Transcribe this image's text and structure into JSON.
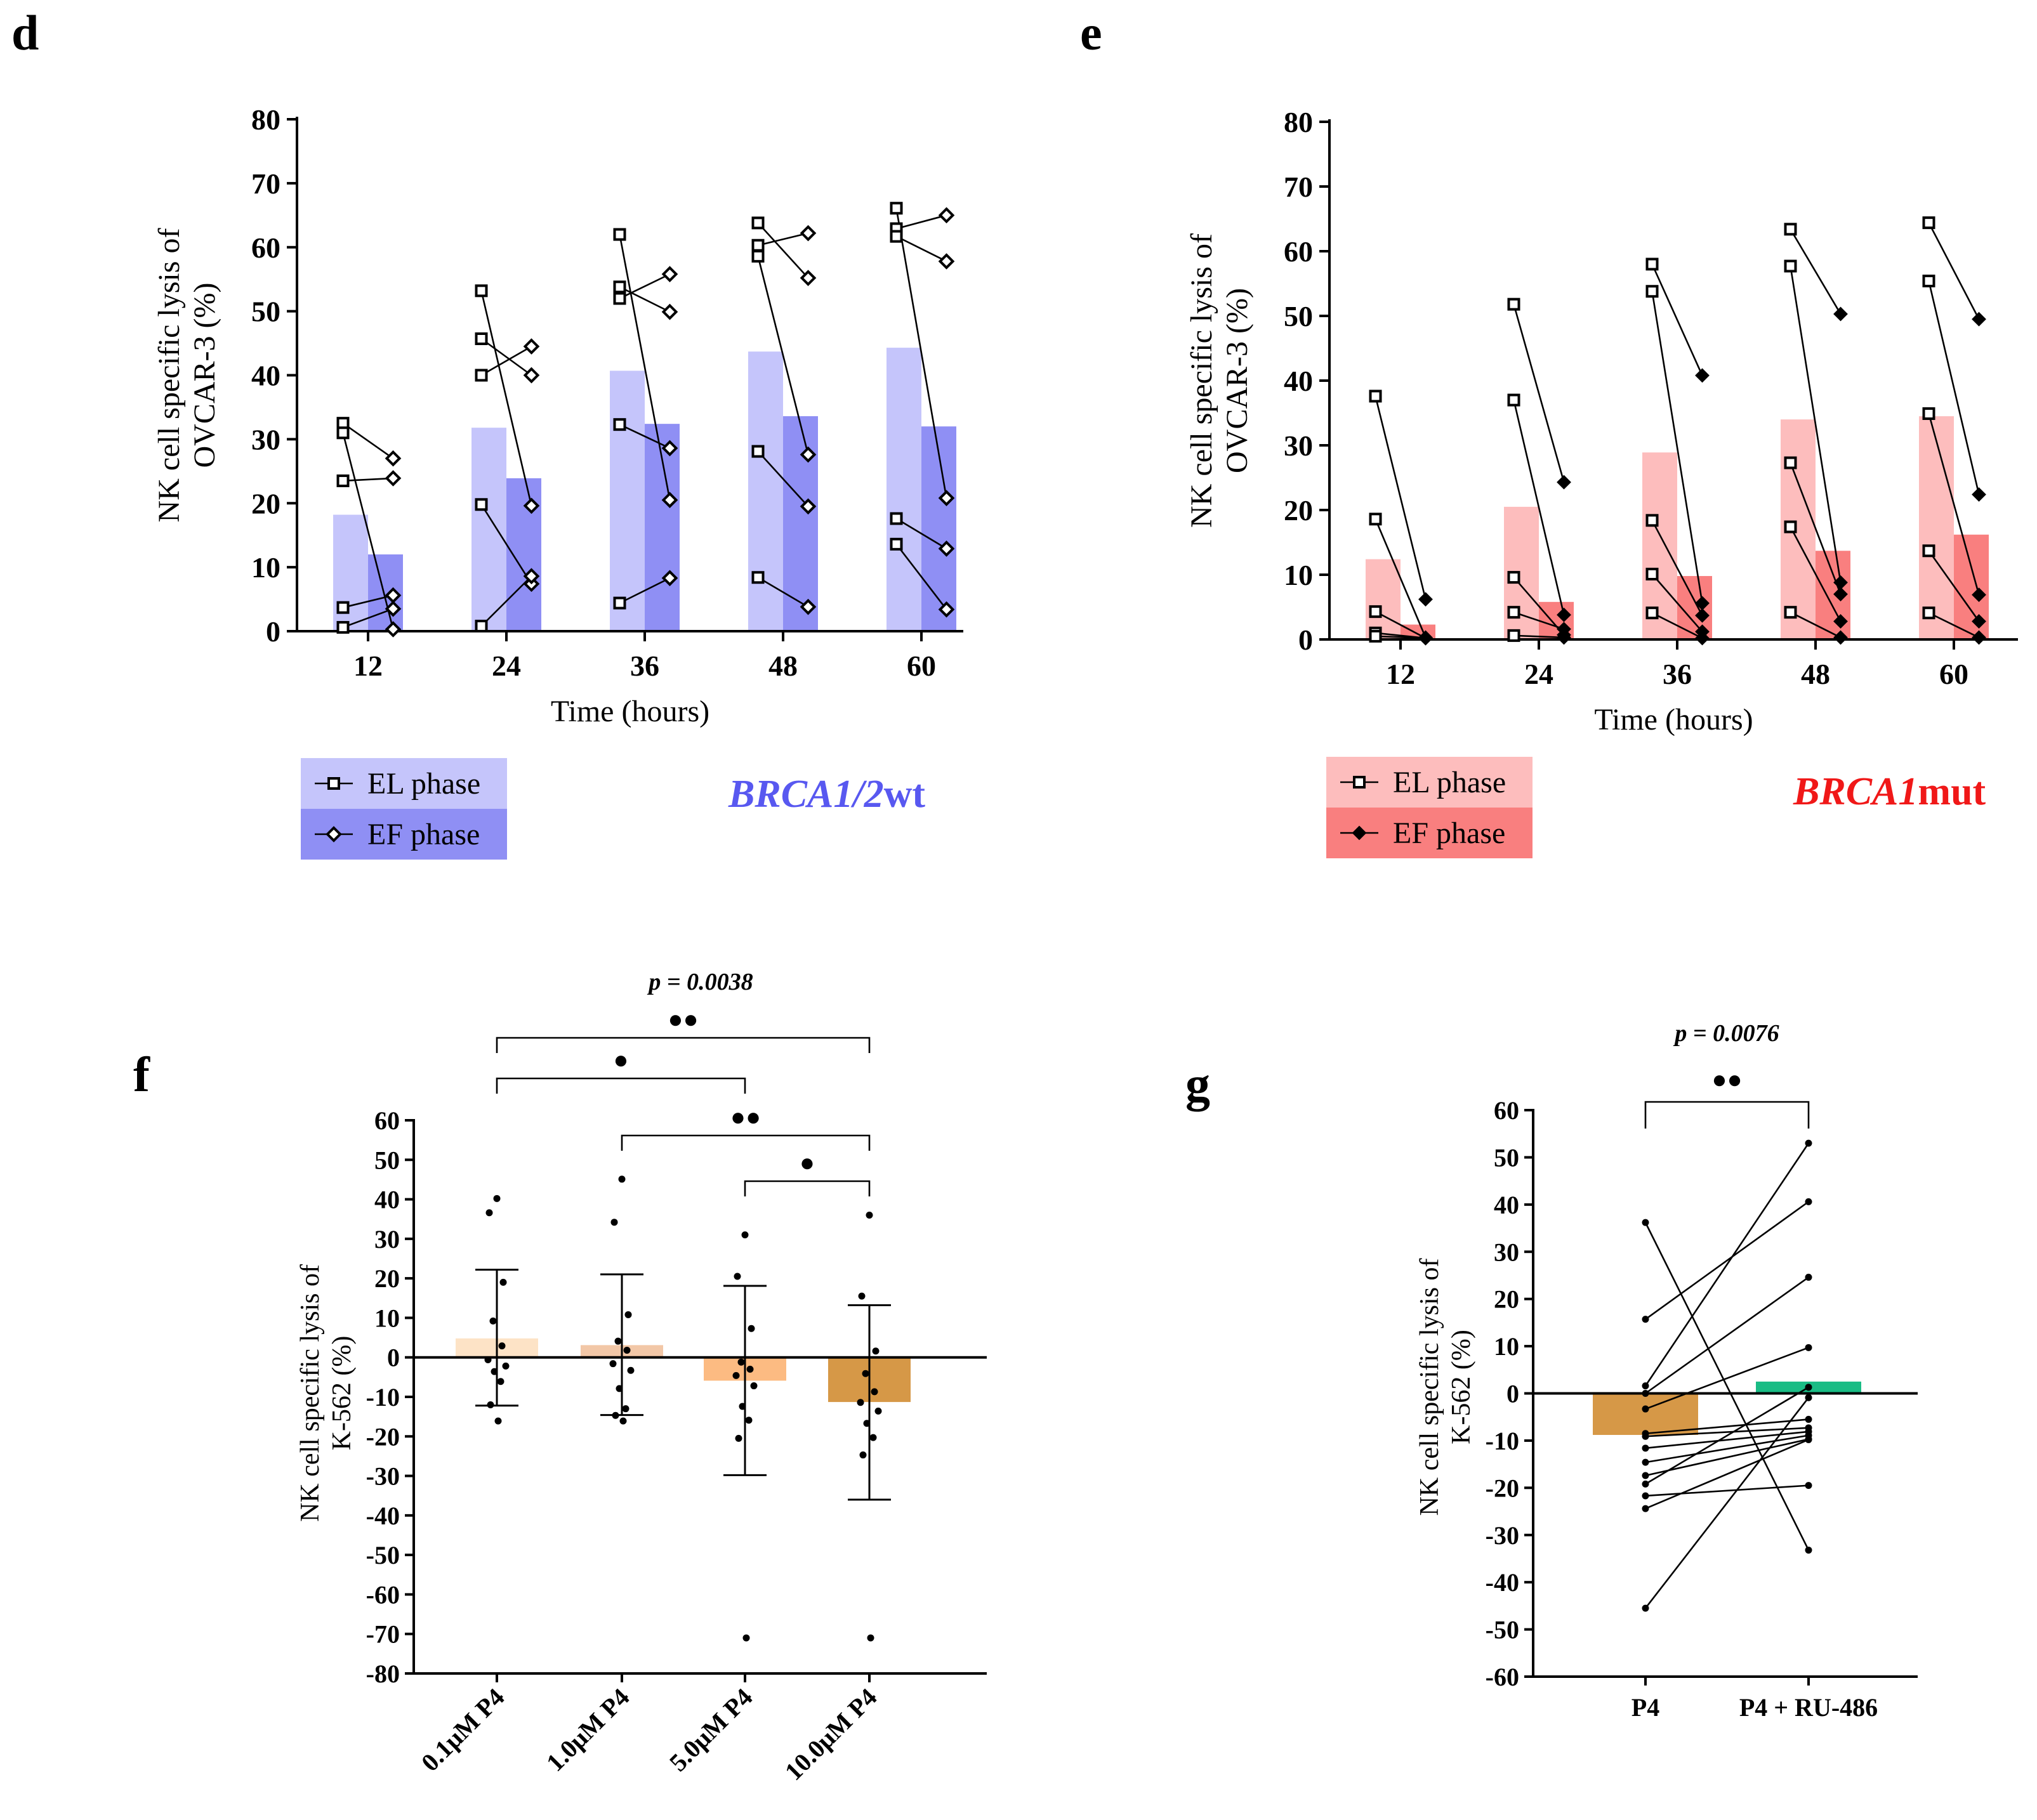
{
  "figure": {
    "panel_labels": [
      "d",
      "e",
      "f",
      "g"
    ]
  },
  "colors": {
    "d_el": "#c5c5fb",
    "d_ef": "#8f8ff4",
    "e_el": "#fdbdbd",
    "e_ef": "#f97f7f",
    "f_bar_0": "#fde3c6",
    "f_bar_1": "#f2c7a7",
    "f_bar_2": "#fcbb82",
    "f_bar_3": "#d69847",
    "g_bar_p4": "#d69847",
    "g_bar_ru": "#1abc85",
    "d_tag": "#5858f0",
    "e_tag": "#f01818"
  },
  "chart_data": [
    {
      "panel": "d",
      "type": "bar",
      "title": "",
      "xlabel": "Time (hours)",
      "ylabel_lines": [
        "NK cell specific lysis of",
        "OVCAR-3 (%)"
      ],
      "categories": [
        "12",
        "24",
        "36",
        "48",
        "60"
      ],
      "ylim": [
        0,
        80
      ],
      "yticks": [
        "0",
        "10",
        "20",
        "30",
        "40",
        "50",
        "60",
        "70",
        "80"
      ],
      "series": [
        {
          "name": "EL phase",
          "values": [
            18.2,
            31.8,
            40.7,
            43.7,
            44.3
          ]
        },
        {
          "name": "EF phase",
          "values": [
            12.0,
            23.9,
            32.4,
            33.6,
            32.0
          ]
        }
      ],
      "paired_points": [
        [
          [
            32.5,
            27.0
          ],
          [
            31.0,
            0.3
          ],
          [
            23.5,
            23.9
          ],
          [
            3.7,
            5.6
          ],
          [
            0.6,
            3.5
          ]
        ],
        [
          [
            53.2,
            19.6
          ],
          [
            45.7,
            40.0
          ],
          [
            40.0,
            44.5
          ],
          [
            19.8,
            7.4
          ],
          [
            0.8,
            8.6
          ]
        ],
        [
          [
            62.0,
            20.5
          ],
          [
            53.8,
            49.9
          ],
          [
            52.0,
            55.8
          ],
          [
            32.3,
            28.6
          ],
          [
            4.4,
            8.3
          ]
        ],
        [
          [
            63.8,
            55.2
          ],
          [
            60.3,
            62.2
          ],
          [
            58.6,
            27.6
          ],
          [
            28.1,
            19.5
          ],
          [
            8.4,
            3.8
          ]
        ],
        [
          [
            66.1,
            20.8
          ],
          [
            62.9,
            65.0
          ],
          [
            61.7,
            57.8
          ],
          [
            17.6,
            12.9
          ],
          [
            13.6,
            3.4
          ]
        ]
      ],
      "legend": [
        "EL phase",
        "EF phase"
      ],
      "annotation": "BRCA1/2wt",
      "annotation_parts": [
        "BRCA1/2",
        "wt"
      ]
    },
    {
      "panel": "e",
      "type": "bar",
      "title": "",
      "xlabel": "Time (hours)",
      "ylabel_lines": [
        "NK cell specific lysis of",
        "OVCAR-3 (%)"
      ],
      "categories": [
        "12",
        "24",
        "36",
        "48",
        "60"
      ],
      "ylim": [
        0,
        80
      ],
      "yticks": [
        "0",
        "10",
        "20",
        "30",
        "40",
        "50",
        "60",
        "70",
        "80"
      ],
      "series": [
        {
          "name": "EL phase",
          "values": [
            12.4,
            20.5,
            28.9,
            34.0,
            34.5
          ]
        },
        {
          "name": "EF phase",
          "values": [
            2.3,
            5.8,
            9.8,
            13.7,
            16.2
          ]
        }
      ],
      "paired_points": [
        [
          [
            37.6,
            6.2
          ],
          [
            18.6,
            0.3
          ],
          [
            4.3,
            0.2
          ],
          [
            1.0,
            0.2
          ],
          [
            0.5,
            0.2
          ]
        ],
        [
          [
            51.8,
            24.3
          ],
          [
            37.0,
            3.8
          ],
          [
            9.6,
            0.7
          ],
          [
            4.2,
            1.6
          ],
          [
            0.6,
            0.3
          ]
        ],
        [
          [
            58.0,
            40.8
          ],
          [
            53.8,
            5.6
          ],
          [
            18.4,
            3.7
          ],
          [
            10.1,
            1.2
          ],
          [
            4.1,
            0.2
          ]
        ],
        [
          [
            63.4,
            50.3
          ],
          [
            57.7,
            8.8
          ],
          [
            27.3,
            7.0
          ],
          [
            17.4,
            2.8
          ],
          [
            4.2,
            0.3
          ]
        ],
        [
          [
            64.4,
            49.5
          ],
          [
            55.4,
            22.4
          ],
          [
            34.9,
            6.9
          ],
          [
            13.7,
            2.8
          ],
          [
            4.1,
            0.3
          ]
        ]
      ],
      "legend": [
        "EL phase",
        "EF phase"
      ],
      "annotation": "BRCA1mut",
      "annotation_parts": [
        "BRCA1",
        "mut"
      ]
    },
    {
      "panel": "f",
      "type": "bar",
      "title": "",
      "xlabel": "",
      "ylabel_lines": [
        "NK cell specific lysis of",
        "K-562 (%)"
      ],
      "categories": [
        "0.1μM P4",
        "1.0μM P4",
        "5.0μM P4",
        "10.0μM P4"
      ],
      "ylim": [
        -80,
        60
      ],
      "yticks": [
        "60",
        "50",
        "40",
        "30",
        "20",
        "10",
        "0",
        "-10",
        "-20",
        "-30",
        "-40",
        "-50",
        "-60",
        "-70",
        "-80"
      ],
      "values": [
        4.8,
        3.1,
        -5.9,
        -11.3
      ],
      "error_upper": [
        22.2,
        21.0,
        18.1,
        13.2
      ],
      "error_lower": [
        -12.2,
        -14.6,
        -29.8,
        -36.0
      ],
      "points": [
        [
          40.2,
          36.6,
          19.0,
          9.2,
          2.9,
          -0.6,
          -2.2,
          -3.6,
          -6.1,
          -12.0,
          -16.1
        ],
        [
          45.1,
          34.2,
          10.8,
          4.1,
          1.8,
          -1.6,
          -3.3,
          -7.9,
          -13.0,
          -14.7,
          -16.1
        ],
        [
          31.0,
          20.5,
          7.3,
          -1.2,
          -3.0,
          -4.6,
          -7.2,
          -12.4,
          -15.9,
          -20.5,
          -71.0
        ],
        [
          36.0,
          15.5,
          1.6,
          -4.1,
          -8.7,
          -11.4,
          -13.6,
          -16.7,
          -20.3,
          -24.7,
          -71.0
        ]
      ],
      "significance": [
        {
          "from": 0,
          "to": 3,
          "stars": "●●",
          "p_label": "p = 0.0038"
        },
        {
          "from": 0,
          "to": 2,
          "stars": "●",
          "p_label": ""
        },
        {
          "from": 1,
          "to": 3,
          "stars": "●●",
          "p_label": ""
        },
        {
          "from": 2,
          "to": 3,
          "stars": "●",
          "p_label": ""
        }
      ]
    },
    {
      "panel": "g",
      "type": "bar",
      "title": "",
      "xlabel": "",
      "ylabel_lines": [
        "NK cell specific lysis of",
        "K-562 (%)"
      ],
      "categories": [
        "P4",
        "P4 + RU-486"
      ],
      "ylim": [
        -60,
        60
      ],
      "yticks": [
        "60",
        "50",
        "40",
        "30",
        "20",
        "10",
        "0",
        "-10",
        "-20",
        "-30",
        "-40",
        "-50",
        "-60"
      ],
      "values": [
        -8.8,
        2.5
      ],
      "paired_points": [
        [
          36.2,
          -33.2
        ],
        [
          15.7,
          40.6
        ],
        [
          1.6,
          53.0
        ],
        [
          0.0,
          24.6
        ],
        [
          -3.3,
          9.7
        ],
        [
          -8.5,
          -5.5
        ],
        [
          -9.1,
          -7.3
        ],
        [
          -11.6,
          -8.1
        ],
        [
          -14.6,
          -8.9
        ],
        [
          -17.4,
          -9.7
        ],
        [
          -19.2,
          1.3
        ],
        [
          -21.7,
          -19.5
        ],
        [
          -24.4,
          -9.8
        ],
        [
          -45.5,
          -0.9
        ]
      ],
      "significance": [
        {
          "from": 0,
          "to": 1,
          "stars": "●●",
          "p_label": "p = 0.0076"
        }
      ]
    }
  ]
}
